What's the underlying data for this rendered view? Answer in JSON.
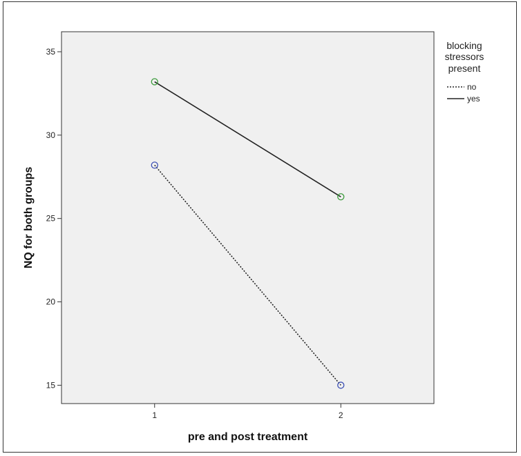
{
  "chart_data": {
    "type": "line",
    "xlabel": "pre and post treatment",
    "ylabel": "NQ for both groups",
    "x": [
      1,
      2
    ],
    "x_tick_labels": [
      "1",
      "2"
    ],
    "xlim": [
      0.5,
      2.5
    ],
    "ylim": [
      13.9,
      36.2
    ],
    "y_ticks": [
      15,
      20,
      25,
      30,
      35
    ],
    "y_tick_labels": [
      "15",
      "20",
      "25",
      "30",
      "35"
    ],
    "grid": false,
    "legend": {
      "title_lines": [
        "blocking",
        "stressors",
        "present"
      ],
      "placement": "right-top",
      "entries": [
        "no",
        "yes"
      ]
    },
    "series": [
      {
        "name": "no",
        "values": [
          28.2,
          15.0
        ],
        "style": "dashed",
        "marker_color": "#3b4fb4"
      },
      {
        "name": "yes",
        "values": [
          33.2,
          26.3
        ],
        "style": "solid",
        "marker_color": "#3a9a3a"
      }
    ],
    "colors": {
      "plot_background": "#f0f0f0",
      "line": "#222222"
    }
  }
}
